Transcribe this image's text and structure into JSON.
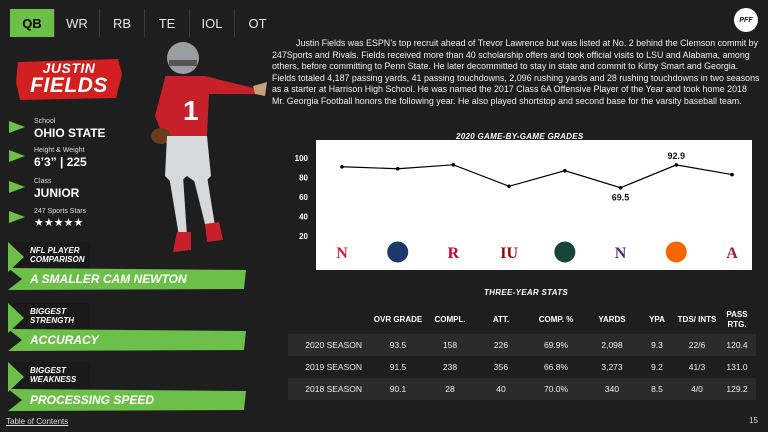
{
  "tabs": [
    {
      "label": "QB",
      "active": true
    },
    {
      "label": "WR",
      "active": false
    },
    {
      "label": "RB",
      "active": false
    },
    {
      "label": "TE",
      "active": false
    },
    {
      "label": "IOL",
      "active": false
    },
    {
      "label": "OT",
      "active": false
    }
  ],
  "logo": "PFF",
  "player": {
    "first_name": "JUSTIN",
    "last_name": "FIELDS",
    "jersey_number": "1",
    "info": [
      {
        "label": "School",
        "value": "OHIO STATE"
      },
      {
        "label": "Height & Weight",
        "value": "6’3” | 225"
      },
      {
        "label": "Class",
        "value": "JUNIOR"
      },
      {
        "label": "247 Sports Stars",
        "value": "★★★★★"
      }
    ]
  },
  "comparison": {
    "label": "NFL PLAYER COMPARISON",
    "value": "A SMALLER CAM NEWTON"
  },
  "strength": {
    "label": "BIGGEST STRENGTH",
    "value": "ACCURACY"
  },
  "weakness": {
    "label": "BIGGEST WEAKNESS",
    "value": "PROCESSING SPEED"
  },
  "bio": "Justin Fields was ESPN’s top recruit ahead of Trevor Lawrence but was listed at No. 2 behind the Clemson commit by 247Sports and Rivals. Fields received more than 40 scholarship offers and took official visits to LSU and Alabama, among others, before committing to Penn State. He later decommitted to stay in state and commit to Kirby Smart and Georgia. Fields totaled 4,187 passing yards, 41 passing touchdowns, 2,096 rushing yards and 28 rushing touchdowns in two seasons as a starter at Harrison High School. He was named the 2017 Class 6A Offensive Player of the Year and took home 2018 Mr. Georgia Football honors the following year. He also played shortstop and second base for the varsity baseball team.",
  "chart_title": "2020 GAME-BY-GAME GRADES",
  "chart_data": {
    "type": "line",
    "title": "2020 GAME-BY-GAME GRADES",
    "categories": [
      "Nebraska",
      "Penn State",
      "Rutgers",
      "Indiana",
      "Michigan State",
      "Northwestern",
      "Clemson",
      "Alabama"
    ],
    "values": [
      91,
      89,
      93,
      71,
      87,
      69.5,
      92.9,
      83
    ],
    "data_labels": [
      {
        "index": 5,
        "text": "69.5"
      },
      {
        "index": 6,
        "text": "92.9"
      }
    ],
    "yticks": [
      "100",
      "80",
      "60",
      "40",
      "20"
    ],
    "ylim": [
      20,
      100
    ],
    "line_color": "#000000"
  },
  "team_logos": [
    {
      "name": "nebraska-logo",
      "glyph": "N",
      "color": "#e41c38"
    },
    {
      "name": "penn-state-logo",
      "glyph": "",
      "color": "#1e3a6d"
    },
    {
      "name": "rutgers-logo",
      "glyph": "R",
      "color": "#cc0033"
    },
    {
      "name": "indiana-logo",
      "glyph": "IU",
      "color": "#990000"
    },
    {
      "name": "michigan-state-logo",
      "glyph": "",
      "color": "#18453b"
    },
    {
      "name": "northwestern-logo",
      "glyph": "N",
      "color": "#4e2a84"
    },
    {
      "name": "clemson-logo",
      "glyph": "",
      "color": "#f56600"
    },
    {
      "name": "alabama-logo",
      "glyph": "A",
      "color": "#9e1b32"
    }
  ],
  "stats_title": "THREE-YEAR STATS",
  "stats": {
    "headers": [
      "",
      "OVR GRADE",
      "COMPL.",
      "ATT.",
      "COMP. %",
      "YARDS",
      "YPA",
      "TDS/ INTS",
      "PASS RTG."
    ],
    "rows": [
      [
        "2020 SEASON",
        "93.5",
        "158",
        "226",
        "69.9%",
        "2,098",
        "9.3",
        "22/6",
        "120.4"
      ],
      [
        "2019 SEASON",
        "91.5",
        "238",
        "356",
        "66.8%",
        "3,273",
        "9.2",
        "41/3",
        "131.0"
      ],
      [
        "2018 SEASON",
        "90.1",
        "28",
        "40",
        "70.0%",
        "340",
        "8.5",
        "4/0",
        "129.2"
      ]
    ]
  },
  "footer": {
    "toc": "Table of Contents",
    "page": "15"
  },
  "colors": {
    "accent": "#6cc04a",
    "background": "#1e1e1e"
  }
}
